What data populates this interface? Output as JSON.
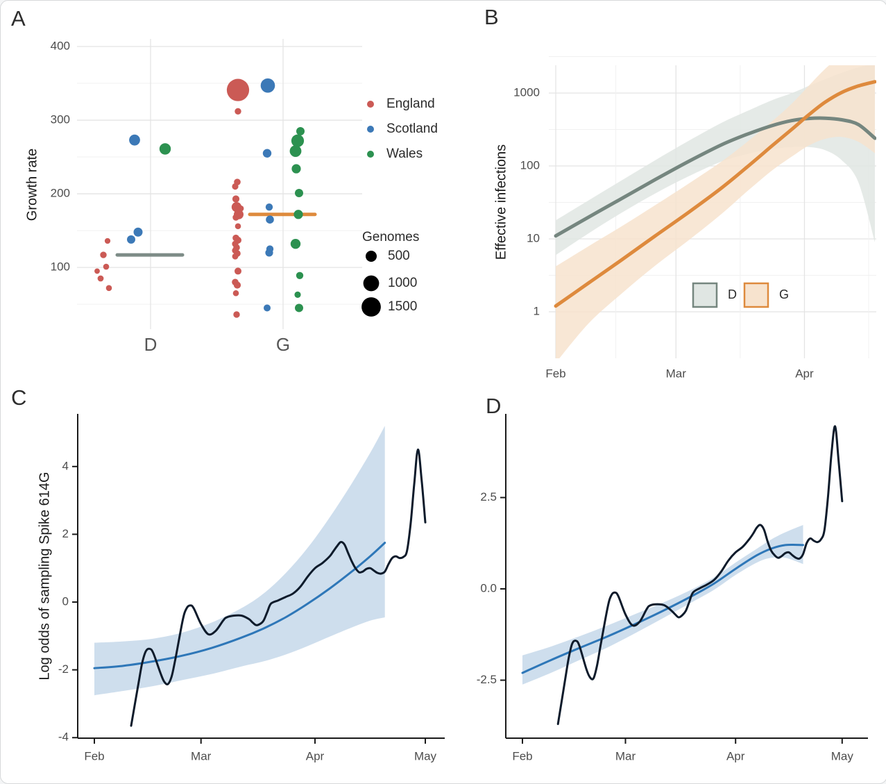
{
  "panels": {
    "a_label": "A",
    "b_label": "B",
    "c_label": "C",
    "d_label": "D"
  },
  "colors": {
    "england": "#CB5A55",
    "scotland": "#3C79B7",
    "wales": "#2C9150",
    "mean_d": "#7D8C87",
    "mean_g": "#DE8A3D",
    "b_line_d": "#75867F",
    "b_band_d": "#E0E6E3",
    "b_line_g": "#DE8A3D",
    "b_band_g": "#F7E3CE",
    "raw_line": "#0E1B2B",
    "smooth_line": "#2E77B8",
    "smooth_band": "#C9DAEB",
    "grid_major": "#E4E4E4",
    "grid_minor": "#F1F1F1",
    "tick_label": "#4D4D4D",
    "axis_title": "#1A1A1A",
    "axis_line": "#1A1A1A",
    "legend_text": "#2B2B2B"
  },
  "chart_data": [
    {
      "id": "A",
      "type": "scatter",
      "ylabel": "Growth rate",
      "x_categories": [
        "D",
        "G"
      ],
      "y_ticks": [
        100,
        200,
        300,
        400
      ],
      "y_minor": [
        50,
        150,
        250,
        350
      ],
      "ylim": [
        0,
        430
      ],
      "region_legend": [
        {
          "label": "England",
          "color_key": "england"
        },
        {
          "label": "Scotland",
          "color_key": "scotland"
        },
        {
          "label": "Wales",
          "color_key": "wales"
        }
      ],
      "size_legend": {
        "title": "Genomes",
        "values": [
          500,
          1000,
          1500
        ]
      },
      "mean_lines": [
        {
          "group": "D",
          "value": 117,
          "color_key": "mean_d"
        },
        {
          "group": "G",
          "value": 172,
          "color_key": "mean_g"
        }
      ],
      "points": [
        {
          "g": "D",
          "region": "england",
          "v": 136,
          "n": 130,
          "dx": -62
        },
        {
          "g": "D",
          "region": "england",
          "v": 117,
          "n": 170,
          "dx": -68
        },
        {
          "g": "D",
          "region": "england",
          "v": 101,
          "n": 140,
          "dx": -64
        },
        {
          "g": "D",
          "region": "england",
          "v": 95,
          "n": 120,
          "dx": -77
        },
        {
          "g": "D",
          "region": "england",
          "v": 85,
          "n": 150,
          "dx": -72
        },
        {
          "g": "D",
          "region": "england",
          "v": 72,
          "n": 140,
          "dx": -60
        },
        {
          "g": "D",
          "region": "scotland",
          "v": 273,
          "n": 480,
          "dx": -23
        },
        {
          "g": "D",
          "region": "scotland",
          "v": 148,
          "n": 330,
          "dx": -18
        },
        {
          "g": "D",
          "region": "scotland",
          "v": 138,
          "n": 280,
          "dx": -28
        },
        {
          "g": "D",
          "region": "wales",
          "v": 261,
          "n": 520,
          "dx": 21
        },
        {
          "g": "G",
          "region": "england",
          "v": 341,
          "n": 2000,
          "dx": -65
        },
        {
          "g": "G",
          "region": "england",
          "v": 312,
          "n": 170,
          "dx": -65
        },
        {
          "g": "G",
          "region": "england",
          "v": 216,
          "n": 180,
          "dx": -66
        },
        {
          "g": "G",
          "region": "england",
          "v": 210,
          "n": 160,
          "dx": -69
        },
        {
          "g": "G",
          "region": "england",
          "v": 193,
          "n": 200,
          "dx": -68
        },
        {
          "g": "G",
          "region": "england",
          "v": 182,
          "n": 400,
          "dx": -67
        },
        {
          "g": "G",
          "region": "england",
          "v": 180,
          "n": 150,
          "dx": -61
        },
        {
          "g": "G",
          "region": "england",
          "v": 172,
          "n": 380,
          "dx": -64
        },
        {
          "g": "G",
          "region": "england",
          "v": 168,
          "n": 170,
          "dx": -68
        },
        {
          "g": "G",
          "region": "england",
          "v": 156,
          "n": 140,
          "dx": -65
        },
        {
          "g": "G",
          "region": "england",
          "v": 140,
          "n": 180,
          "dx": -68
        },
        {
          "g": "G",
          "region": "england",
          "v": 137,
          "n": 190,
          "dx": -65
        },
        {
          "g": "G",
          "region": "england",
          "v": 132,
          "n": 160,
          "dx": -69
        },
        {
          "g": "G",
          "region": "england",
          "v": 127,
          "n": 180,
          "dx": -67
        },
        {
          "g": "G",
          "region": "england",
          "v": 123,
          "n": 160,
          "dx": -69
        },
        {
          "g": "G",
          "region": "england",
          "v": 119,
          "n": 180,
          "dx": -66
        },
        {
          "g": "G",
          "region": "england",
          "v": 115,
          "n": 150,
          "dx": -69
        },
        {
          "g": "G",
          "region": "england",
          "v": 95,
          "n": 190,
          "dx": -65
        },
        {
          "g": "G",
          "region": "england",
          "v": 80,
          "n": 180,
          "dx": -69
        },
        {
          "g": "G",
          "region": "england",
          "v": 76,
          "n": 200,
          "dx": -66
        },
        {
          "g": "G",
          "region": "england",
          "v": 65,
          "n": 140,
          "dx": -68
        },
        {
          "g": "G",
          "region": "england",
          "v": 36,
          "n": 170,
          "dx": -67
        },
        {
          "g": "G",
          "region": "scotland",
          "v": 347,
          "n": 820,
          "dx": -22
        },
        {
          "g": "G",
          "region": "scotland",
          "v": 255,
          "n": 300,
          "dx": -23
        },
        {
          "g": "G",
          "region": "scotland",
          "v": 182,
          "n": 210,
          "dx": -20
        },
        {
          "g": "G",
          "region": "scotland",
          "v": 165,
          "n": 260,
          "dx": -19
        },
        {
          "g": "G",
          "region": "scotland",
          "v": 125,
          "n": 210,
          "dx": -19
        },
        {
          "g": "G",
          "region": "scotland",
          "v": 120,
          "n": 240,
          "dx": -20
        },
        {
          "g": "G",
          "region": "scotland",
          "v": 45,
          "n": 190,
          "dx": -23
        },
        {
          "g": "G",
          "region": "wales",
          "v": 285,
          "n": 280,
          "dx": 25
        },
        {
          "g": "G",
          "region": "wales",
          "v": 272,
          "n": 640,
          "dx": 21
        },
        {
          "g": "G",
          "region": "wales",
          "v": 258,
          "n": 540,
          "dx": 18
        },
        {
          "g": "G",
          "region": "wales",
          "v": 234,
          "n": 340,
          "dx": 19
        },
        {
          "g": "G",
          "region": "wales",
          "v": 201,
          "n": 280,
          "dx": 23
        },
        {
          "g": "G",
          "region": "wales",
          "v": 172,
          "n": 340,
          "dx": 22
        },
        {
          "g": "G",
          "region": "wales",
          "v": 132,
          "n": 400,
          "dx": 18
        },
        {
          "g": "G",
          "region": "wales",
          "v": 89,
          "n": 210,
          "dx": 24
        },
        {
          "g": "G",
          "region": "wales",
          "v": 63,
          "n": 160,
          "dx": 21
        },
        {
          "g": "G",
          "region": "wales",
          "v": 45,
          "n": 280,
          "dx": 23
        }
      ]
    },
    {
      "id": "B",
      "type": "line",
      "ylabel": "Effective infections",
      "x_ticks": [
        "Feb",
        "Mar",
        "Apr"
      ],
      "y_ticks": [
        1,
        10,
        100,
        1000
      ],
      "y_scale": "log",
      "legend": [
        {
          "label": "D"
        },
        {
          "label": "G"
        }
      ],
      "x_days": [
        0,
        8,
        16,
        24,
        32,
        40,
        46,
        52,
        57,
        61,
        65,
        69,
        73,
        77
      ],
      "series": [
        {
          "name": "D",
          "y": [
            11,
            20,
            36,
            65,
            115,
            195,
            270,
            355,
            420,
            448,
            452,
            430,
            370,
            240
          ],
          "lo": [
            6,
            12,
            23,
            42,
            72,
            115,
            145,
            170,
            182,
            182,
            165,
            120,
            60,
            9
          ],
          "hi": [
            18,
            34,
            64,
            120,
            220,
            390,
            560,
            790,
            1000,
            1250,
            1550,
            1900,
            2250,
            2550
          ]
        },
        {
          "name": "G",
          "y": [
            1.2,
            2.5,
            5.2,
            11,
            23,
            50,
            95,
            185,
            320,
            500,
            750,
            1020,
            1250,
            1430
          ],
          "lo": [
            0.2,
            0.7,
            1.8,
            4.3,
            9.5,
            22,
            44,
            85,
            135,
            190,
            235,
            250,
            215,
            150
          ],
          "hi": [
            4.2,
            8,
            15,
            29,
            57,
            115,
            210,
            400,
            720,
            1250,
            2150,
            3300,
            4700,
            6200
          ]
        }
      ]
    },
    {
      "id": "C",
      "type": "line",
      "ylabel": "Log odds of sampling Spike 614G",
      "x_ticks": [
        "Feb",
        "Mar",
        "Apr",
        "May"
      ],
      "y_ticks": [
        -4,
        -2,
        0,
        2,
        4
      ],
      "raw": {
        "x": [
          10,
          12,
          13,
          14,
          15,
          16,
          18,
          19,
          20,
          21,
          22,
          24,
          25,
          26,
          27,
          29,
          31,
          33,
          35,
          36,
          38,
          40,
          42,
          43,
          44,
          45,
          46,
          47,
          48,
          50,
          52,
          54,
          56,
          58,
          60,
          62,
          64,
          65,
          66,
          67,
          68,
          69,
          70,
          71,
          72,
          73,
          74,
          75,
          76,
          77,
          78,
          79,
          80,
          81,
          82,
          83,
          84,
          85,
          86,
          87,
          88,
          89,
          90
        ],
        "y": [
          -3.65,
          -2.4,
          -1.8,
          -1.45,
          -1.38,
          -1.5,
          -2.1,
          -2.35,
          -2.42,
          -2.2,
          -1.7,
          -0.55,
          -0.2,
          -0.1,
          -0.18,
          -0.65,
          -0.95,
          -0.85,
          -0.55,
          -0.45,
          -0.4,
          -0.4,
          -0.5,
          -0.6,
          -0.68,
          -0.65,
          -0.55,
          -0.3,
          -0.05,
          0.05,
          0.15,
          0.25,
          0.45,
          0.75,
          1.0,
          1.15,
          1.35,
          1.5,
          1.65,
          1.77,
          1.7,
          1.45,
          1.2,
          1.0,
          0.88,
          0.9,
          0.98,
          1.0,
          0.93,
          0.86,
          0.84,
          0.9,
          1.12,
          1.3,
          1.35,
          1.3,
          1.33,
          1.5,
          2.3,
          3.5,
          4.5,
          3.6,
          2.35
        ]
      },
      "smooth": {
        "x": [
          0,
          8,
          16,
          24,
          32,
          40,
          46,
          52,
          58,
          64,
          70,
          75,
          79
        ],
        "y": [
          -1.95,
          -1.88,
          -1.75,
          -1.58,
          -1.35,
          -1.05,
          -0.78,
          -0.45,
          -0.05,
          0.4,
          0.9,
          1.35,
          1.75
        ],
        "lo": [
          -2.75,
          -2.62,
          -2.48,
          -2.3,
          -2.12,
          -1.9,
          -1.75,
          -1.55,
          -1.3,
          -1.02,
          -0.75,
          -0.55,
          -0.45
        ],
        "hi": [
          -1.2,
          -1.16,
          -1.08,
          -0.9,
          -0.6,
          -0.18,
          0.25,
          0.85,
          1.6,
          2.5,
          3.5,
          4.4,
          5.2
        ]
      }
    },
    {
      "id": "D",
      "type": "line",
      "ylabel": "",
      "x_ticks": [
        "Feb",
        "Mar",
        "Apr",
        "May"
      ],
      "y_ticks": [
        -2.5,
        0.0,
        2.5
      ],
      "raw": {
        "x": [
          10,
          12,
          13,
          14,
          15,
          16,
          18,
          19,
          20,
          21,
          22,
          24,
          25,
          26,
          27,
          29,
          31,
          33,
          35,
          36,
          38,
          40,
          42,
          43,
          44,
          45,
          46,
          47,
          48,
          50,
          52,
          54,
          56,
          58,
          60,
          62,
          64,
          65,
          66,
          67,
          68,
          69,
          70,
          71,
          72,
          73,
          74,
          75,
          76,
          77,
          78,
          79,
          80,
          81,
          82,
          83,
          84,
          85,
          86,
          87,
          88,
          89,
          90
        ],
        "y": [
          -3.7,
          -2.5,
          -1.9,
          -1.5,
          -1.42,
          -1.55,
          -2.2,
          -2.42,
          -2.45,
          -2.1,
          -1.55,
          -0.5,
          -0.18,
          -0.1,
          -0.2,
          -0.7,
          -1.0,
          -0.9,
          -0.55,
          -0.45,
          -0.42,
          -0.45,
          -0.6,
          -0.7,
          -0.78,
          -0.72,
          -0.6,
          -0.35,
          -0.1,
          0.02,
          0.12,
          0.25,
          0.48,
          0.78,
          1.0,
          1.15,
          1.38,
          1.52,
          1.68,
          1.75,
          1.62,
          1.3,
          1.05,
          0.92,
          0.85,
          0.9,
          0.98,
          1.0,
          0.92,
          0.85,
          0.83,
          0.95,
          1.25,
          1.38,
          1.32,
          1.28,
          1.35,
          1.6,
          2.5,
          3.7,
          4.45,
          3.5,
          2.4
        ]
      },
      "smooth": {
        "x": [
          0,
          8,
          16,
          24,
          32,
          40,
          48,
          54,
          60,
          66,
          70,
          74,
          79
        ],
        "y": [
          -2.3,
          -1.95,
          -1.62,
          -1.3,
          -0.95,
          -0.58,
          -0.18,
          0.15,
          0.55,
          0.92,
          1.1,
          1.2,
          1.2
        ],
        "lo": [
          -2.62,
          -2.3,
          -1.95,
          -1.6,
          -1.2,
          -0.78,
          -0.35,
          -0.02,
          0.38,
          0.72,
          0.85,
          0.85,
          0.68
        ],
        "hi": [
          -1.82,
          -1.58,
          -1.3,
          -1.0,
          -0.68,
          -0.36,
          0.0,
          0.32,
          0.72,
          1.1,
          1.35,
          1.55,
          1.75
        ]
      }
    }
  ]
}
